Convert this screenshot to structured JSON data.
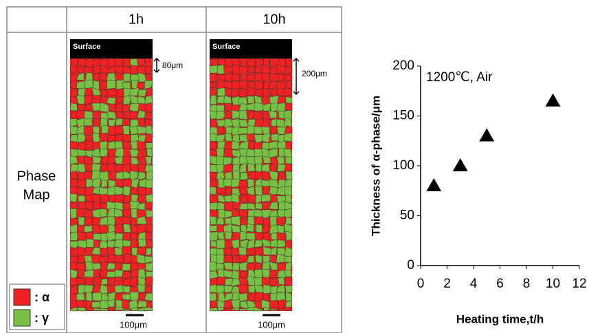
{
  "figure": {
    "columns": [
      "1h",
      "10h"
    ],
    "row_label": [
      "Phase",
      "Map"
    ],
    "surface_labels": [
      "Surface",
      "Surface"
    ],
    "depth_labels": [
      "80μm",
      "200μm"
    ],
    "scale_labels": [
      "100μm",
      "100μm"
    ],
    "legend": [
      ": α",
      ": γ"
    ]
  },
  "chart_data": {
    "type": "scatter",
    "annotation": "1200℃, Air",
    "x_label": "Heating time,t/h",
    "y_label": "Thickness of α-phase/μm",
    "x": [
      1,
      3,
      5,
      10
    ],
    "values": [
      80,
      100,
      130,
      165
    ],
    "color": "#000000",
    "xlim": [
      0,
      12
    ],
    "xticks": [
      0,
      2,
      4,
      6,
      8,
      10,
      12
    ],
    "ylim": [
      0,
      200
    ],
    "yticks": [
      0,
      50,
      100,
      150,
      200
    ],
    "grid": false
  }
}
